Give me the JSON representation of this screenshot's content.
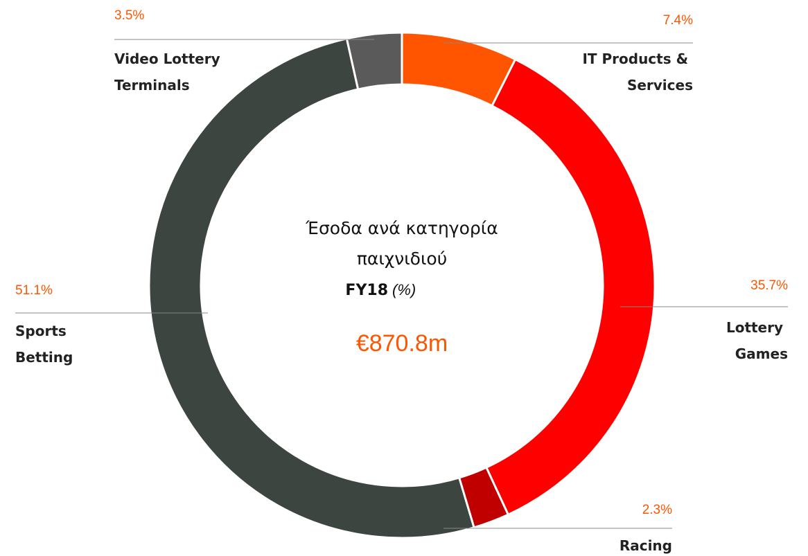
{
  "chart_data": {
    "type": "donut",
    "title": [
      "Έσοδα ανά κατηγορία",
      "παιχνιδιού"
    ],
    "subtitle": "FY18",
    "unit_label": "(%)",
    "total_label": "€870.8m",
    "categories": [
      "IT Products & Services",
      "Lottery Games",
      "Racing",
      "Sports Betting",
      "Video Lottery Terminals"
    ],
    "values": [
      7.4,
      35.7,
      2.3,
      51.1,
      3.5
    ],
    "value_labels": [
      "7.4%",
      "35.7%",
      "2.3%",
      "51.1%",
      "3.5%"
    ],
    "colors": [
      "#ff5500",
      "#ff0000",
      "#c00000",
      "#3d4540",
      "#5a5a5a"
    ]
  }
}
